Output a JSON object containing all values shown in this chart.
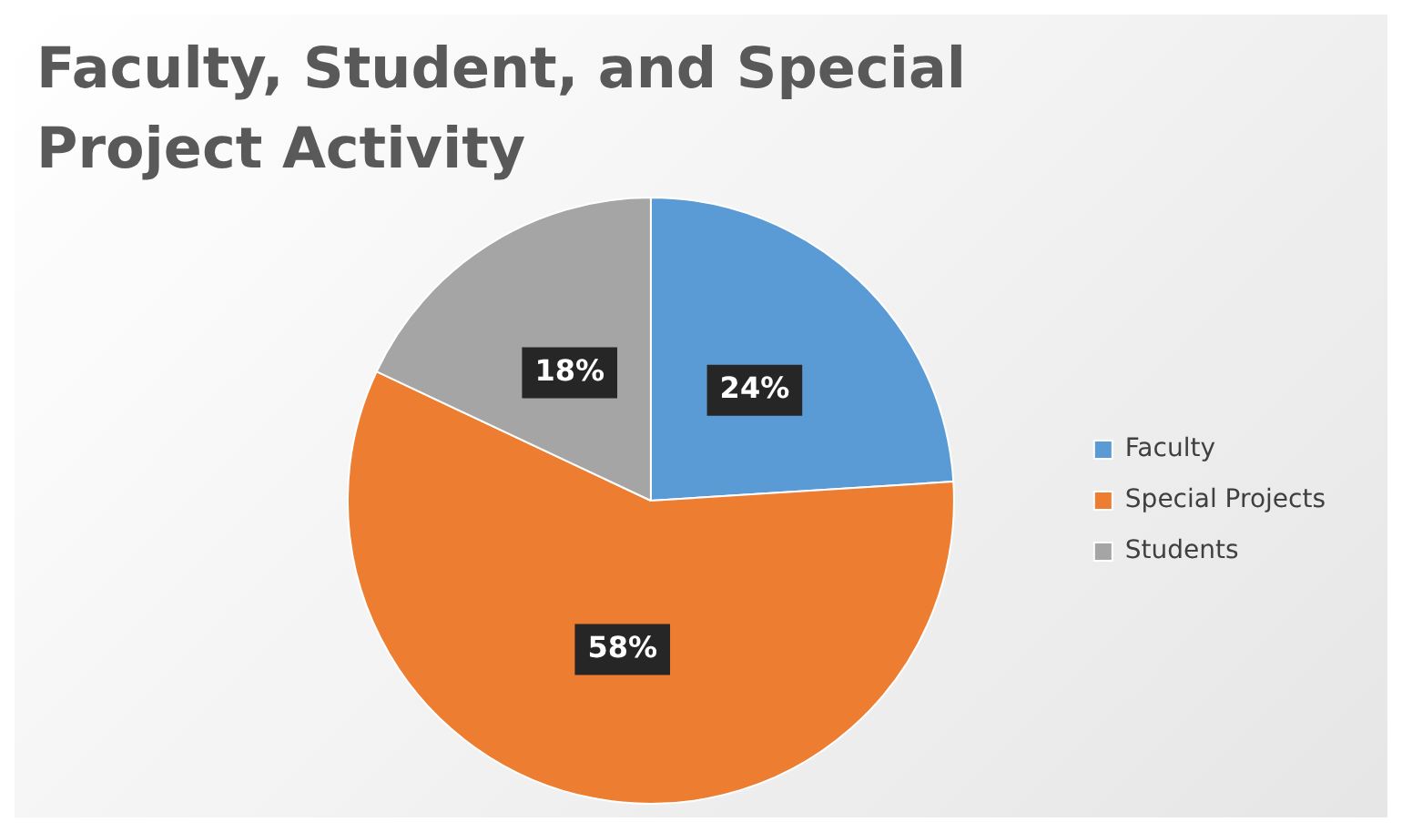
{
  "chart_data": {
    "type": "pie",
    "title": "Faculty, Student, and Special Project Activity",
    "categories": [
      "Faculty",
      "Special Projects",
      "Students"
    ],
    "values": [
      24,
      58,
      18
    ],
    "colors": [
      "#5b9bd5",
      "#ed7d31",
      "#a5a5a5"
    ],
    "value_labels": [
      "24%",
      "58%",
      "18%"
    ],
    "legend": "right"
  }
}
